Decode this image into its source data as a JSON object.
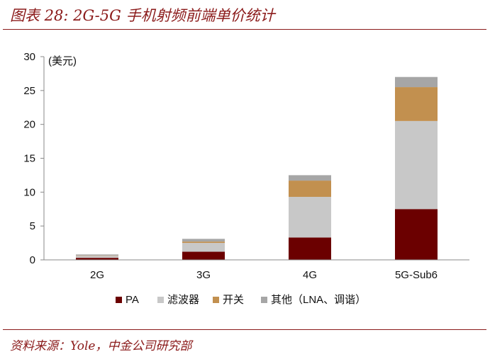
{
  "figure": {
    "title": "图表 28: 2G-5G 手机射频前端单价统计",
    "source": "资料来源：Yole，中金公司研究部"
  },
  "chart_data": {
    "type": "bar",
    "stacked": true,
    "unit_label": "(美元)",
    "categories": [
      "2G",
      "3G",
      "4G",
      "5G-Sub6"
    ],
    "series": [
      {
        "name": "PA",
        "color": "#6b0000",
        "values": [
          0.3,
          1.2,
          3.3,
          7.5
        ]
      },
      {
        "name": "滤波器",
        "color": "#c8c8c8",
        "values": [
          0.3,
          1.3,
          6.0,
          13.0
        ]
      },
      {
        "name": "开关",
        "color": "#c2904f",
        "values": [
          0.05,
          0.2,
          2.4,
          5.0
        ]
      },
      {
        "name": "其他（LNA、调谐）",
        "color": "#a6a6a6",
        "values": [
          0.15,
          0.4,
          0.8,
          1.5
        ]
      }
    ],
    "ylim": [
      0,
      30
    ],
    "yticks": [
      0,
      5,
      10,
      15,
      20,
      25,
      30
    ],
    "grid": false,
    "legend_position": "bottom"
  }
}
